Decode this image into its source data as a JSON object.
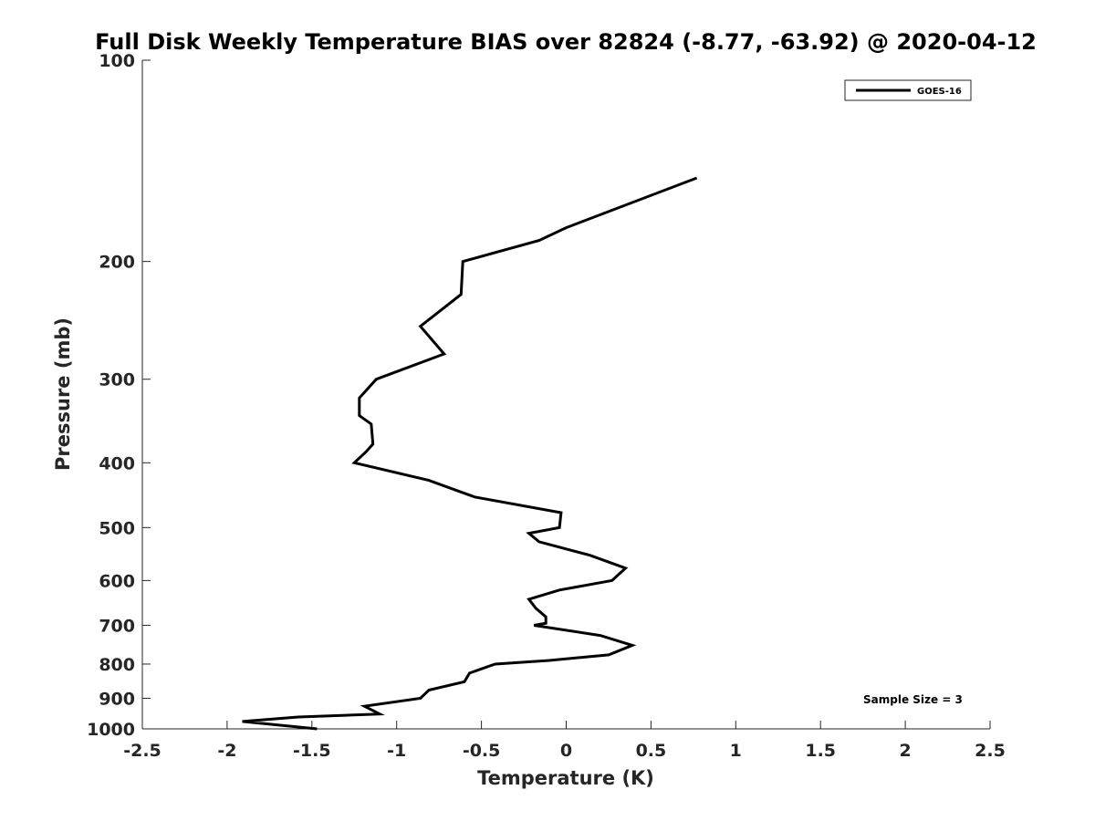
{
  "chart_data": {
    "type": "line",
    "title": "Full Disk Weekly Temperature BIAS over 82824 (-8.77, -63.92) @ 2020-04-12",
    "xlabel": "Temperature (K)",
    "ylabel": "Pressure (mb)",
    "xlim": [
      -2.5,
      2.5
    ],
    "ylim": [
      100,
      1000
    ],
    "y_scale": "log",
    "y_reversed": true,
    "grid": false,
    "legend_position": "top-right",
    "x_ticks": [
      "-2.5",
      "-2",
      "-1.5",
      "-1",
      "-0.5",
      "0",
      "0.5",
      "1",
      "1.5",
      "2",
      "2.5"
    ],
    "x_tick_values": [
      -2.5,
      -2,
      -1.5,
      -1,
      -0.5,
      0,
      0.5,
      1,
      1.5,
      2,
      2.5
    ],
    "y_ticks": [
      "100",
      "200",
      "300",
      "400",
      "500",
      "600",
      "700",
      "800",
      "900",
      "1000"
    ],
    "y_tick_values": [
      100,
      200,
      300,
      400,
      500,
      600,
      700,
      800,
      900,
      1000
    ],
    "series": [
      {
        "name": "GOES-16",
        "color": "#000000",
        "points": [
          [
            0.77,
            150
          ],
          [
            0.0,
            178
          ],
          [
            -0.16,
            186
          ],
          [
            -0.61,
            200
          ],
          [
            -0.62,
            224
          ],
          [
            -0.86,
            250
          ],
          [
            -0.72,
            275
          ],
          [
            -1.12,
            300
          ],
          [
            -1.22,
            320
          ],
          [
            -1.22,
            340
          ],
          [
            -1.15,
            350
          ],
          [
            -1.14,
            375
          ],
          [
            -1.18,
            385
          ],
          [
            -1.25,
            400
          ],
          [
            -0.81,
            425
          ],
          [
            -0.54,
            450
          ],
          [
            -0.03,
            475
          ],
          [
            -0.04,
            500
          ],
          [
            -0.22,
            510
          ],
          [
            -0.16,
            525
          ],
          [
            0.14,
            550
          ],
          [
            0.35,
            575
          ],
          [
            0.27,
            600
          ],
          [
            -0.04,
            620
          ],
          [
            -0.22,
            640
          ],
          [
            -0.18,
            660
          ],
          [
            -0.12,
            680
          ],
          [
            -0.12,
            695
          ],
          [
            -0.19,
            700
          ],
          [
            0.2,
            725
          ],
          [
            0.39,
            750
          ],
          [
            0.25,
            775
          ],
          [
            -0.1,
            790
          ],
          [
            -0.42,
            800
          ],
          [
            -0.57,
            825
          ],
          [
            -0.6,
            850
          ],
          [
            -0.81,
            875
          ],
          [
            -0.86,
            900
          ],
          [
            -1.19,
            925
          ],
          [
            -1.1,
            950
          ],
          [
            -1.58,
            960
          ],
          [
            -1.91,
            975
          ],
          [
            -1.47,
            1000
          ]
        ]
      }
    ],
    "annotations": [
      "Sample Size = 3"
    ]
  }
}
